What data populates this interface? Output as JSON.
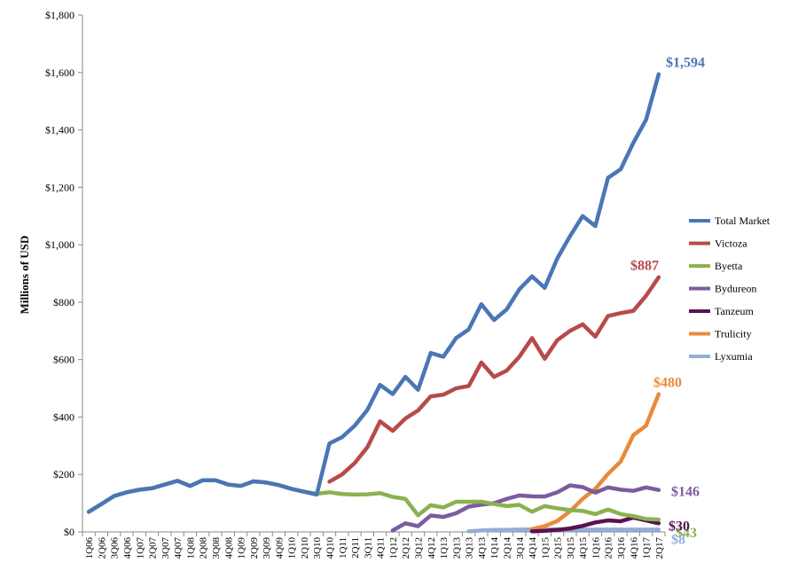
{
  "chart_data": {
    "type": "line",
    "title": "",
    "xlabel": "",
    "ylabel": "Millions of USD",
    "ylim": [
      0,
      1800
    ],
    "yticks": [
      0,
      200,
      400,
      600,
      800,
      1000,
      1200,
      1400,
      1600,
      1800
    ],
    "ytick_labels": [
      "$0",
      "$200",
      "$400",
      "$600",
      "$800",
      "$1,000",
      "$1,200",
      "$1,400",
      "$1,600",
      "$1,800"
    ],
    "grid": false,
    "legend_position": "right",
    "categories": [
      "1Q06",
      "2Q06",
      "3Q06",
      "4Q06",
      "1Q07",
      "2Q07",
      "3Q07",
      "4Q07",
      "1Q08",
      "2Q08",
      "3Q08",
      "4Q08",
      "1Q09",
      "2Q09",
      "3Q09",
      "4Q09",
      "1Q10",
      "2Q10",
      "3Q10",
      "4Q10",
      "1Q11",
      "2Q11",
      "3Q11",
      "4Q11",
      "1Q12",
      "2Q12",
      "3Q12",
      "4Q12",
      "1Q13",
      "2Q13",
      "3Q13",
      "4Q13",
      "1Q14",
      "2Q14",
      "3Q14",
      "4Q14",
      "1Q15",
      "2Q15",
      "3Q15",
      "4Q15",
      "1Q16",
      "2Q16",
      "3Q16",
      "4Q16",
      "1Q17",
      "2Q17"
    ],
    "series": [
      {
        "name": "Total Market",
        "color": "#4a76b5",
        "end_label": "$1,594",
        "values": [
          70,
          97,
          125,
          138,
          147,
          152,
          165,
          178,
          160,
          180,
          180,
          165,
          160,
          176,
          172,
          163,
          150,
          140,
          130,
          308,
          330,
          370,
          425,
          512,
          480,
          540,
          495,
          623,
          610,
          675,
          705,
          793,
          738,
          775,
          845,
          890,
          850,
          953,
          1030,
          1100,
          1065,
          1233,
          1263,
          1355,
          1435,
          1594
        ]
      },
      {
        "name": "Victoza",
        "color": "#b74a4a",
        "end_label": "$887",
        "values": [
          null,
          null,
          null,
          null,
          null,
          null,
          null,
          null,
          null,
          null,
          null,
          null,
          null,
          null,
          null,
          null,
          null,
          null,
          null,
          175,
          200,
          240,
          295,
          385,
          352,
          395,
          423,
          472,
          478,
          500,
          508,
          590,
          540,
          562,
          610,
          675,
          603,
          668,
          700,
          723,
          680,
          752,
          762,
          770,
          822,
          887
        ]
      },
      {
        "name": "Byetta",
        "color": "#8bb150",
        "end_label": "$43",
        "values": [
          70,
          97,
          125,
          138,
          147,
          152,
          165,
          178,
          160,
          180,
          180,
          165,
          160,
          176,
          172,
          163,
          150,
          140,
          133,
          138,
          132,
          130,
          131,
          135,
          122,
          115,
          58,
          93,
          85,
          105,
          105,
          105,
          97,
          90,
          94,
          70,
          90,
          82,
          76,
          73,
          62,
          78,
          62,
          55,
          45,
          43
        ]
      },
      {
        "name": "Bydureon",
        "color": "#7c5b9e",
        "end_label": "$146",
        "values": [
          null,
          null,
          null,
          null,
          null,
          null,
          null,
          null,
          null,
          null,
          null,
          null,
          null,
          null,
          null,
          null,
          null,
          null,
          null,
          null,
          null,
          null,
          null,
          null,
          5,
          30,
          20,
          57,
          52,
          65,
          88,
          95,
          100,
          115,
          127,
          124,
          123,
          138,
          162,
          156,
          137,
          155,
          147,
          143,
          155,
          146
        ]
      },
      {
        "name": "Tanzeum",
        "color": "#5a1052",
        "end_label": "$30",
        "values": [
          null,
          null,
          null,
          null,
          null,
          null,
          null,
          null,
          null,
          null,
          null,
          null,
          null,
          null,
          null,
          null,
          null,
          null,
          null,
          null,
          null,
          null,
          null,
          null,
          null,
          null,
          null,
          null,
          null,
          null,
          null,
          null,
          null,
          null,
          null,
          2,
          4,
          7,
          12,
          21,
          33,
          40,
          37,
          50,
          40,
          30
        ]
      },
      {
        "name": "Trulicity",
        "color": "#e98a3b",
        "end_label": "$480",
        "values": [
          null,
          null,
          null,
          null,
          null,
          null,
          null,
          null,
          null,
          null,
          null,
          null,
          null,
          null,
          null,
          null,
          null,
          null,
          null,
          null,
          null,
          null,
          null,
          null,
          null,
          null,
          null,
          null,
          null,
          null,
          null,
          null,
          null,
          null,
          null,
          10,
          20,
          38,
          72,
          115,
          150,
          202,
          245,
          337,
          370,
          480
        ]
      },
      {
        "name": "Lyxumia",
        "color": "#94aed8",
        "end_label": "$8",
        "values": [
          null,
          null,
          null,
          null,
          null,
          null,
          null,
          null,
          null,
          null,
          null,
          null,
          null,
          null,
          null,
          null,
          null,
          null,
          null,
          null,
          null,
          null,
          null,
          null,
          null,
          null,
          null,
          null,
          null,
          null,
          2,
          5,
          7,
          7,
          8,
          9,
          9,
          9,
          9,
          8,
          8,
          8,
          8,
          8,
          8,
          8
        ]
      }
    ]
  }
}
